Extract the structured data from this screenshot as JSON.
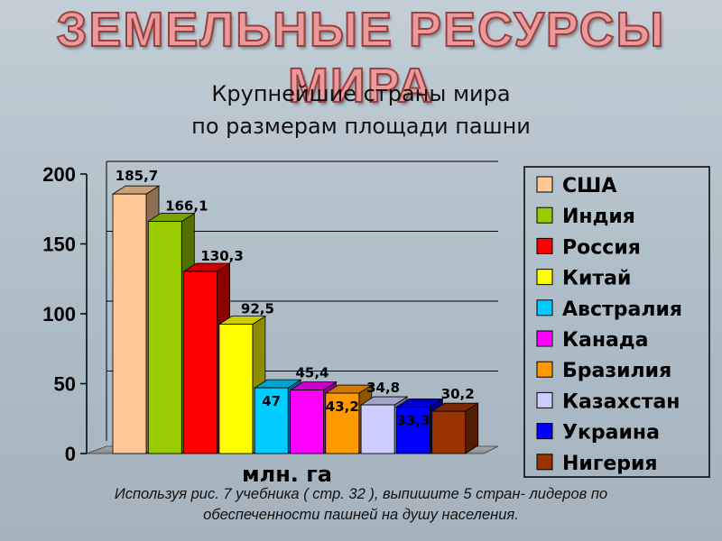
{
  "slide": {
    "title": "ЗЕМЕЛЬНЫЕ РЕСУРСЫ МИРА",
    "caption_line1": "Используя рис. 7 учебника ( стр. 32 ), выпишите 5 стран- лидеров по",
    "caption_line2": "обеспеченности пашней на душу населения."
  },
  "colors": {
    "title_fill": "#ea9a9a",
    "title_outline": "#9a4040",
    "background": "#b5c3cc"
  },
  "chart_data": {
    "type": "bar",
    "title": "Крупнейшие страны мира",
    "subtitle": "по размерам площади пашни",
    "xlabel": "млн. га",
    "ylabel": "",
    "ylim": [
      0,
      200
    ],
    "yticks": [
      0,
      50,
      100,
      150,
      200
    ],
    "grid": true,
    "legend_position": "right",
    "categories": [
      "США",
      "Индия",
      "Россия",
      "Китай",
      "Австралия",
      "Канада",
      "Бразилия",
      "Казахстан",
      "Украина",
      "Нигерия"
    ],
    "values": [
      185.7,
      166.1,
      130.3,
      92.5,
      47,
      45.4,
      43.2,
      34.8,
      33.3,
      30.2
    ],
    "data_labels": [
      "185,7",
      "166,1",
      "130,3",
      "92,5",
      "47",
      "45,4",
      "43,2",
      "34,8",
      "33,3",
      "30,2"
    ],
    "colors": [
      "#ffc896",
      "#99cc00",
      "#ff0000",
      "#ffff00",
      "#00ccff",
      "#ff00ff",
      "#ff9900",
      "#ccccff",
      "#0000ff",
      "#993300"
    ]
  }
}
